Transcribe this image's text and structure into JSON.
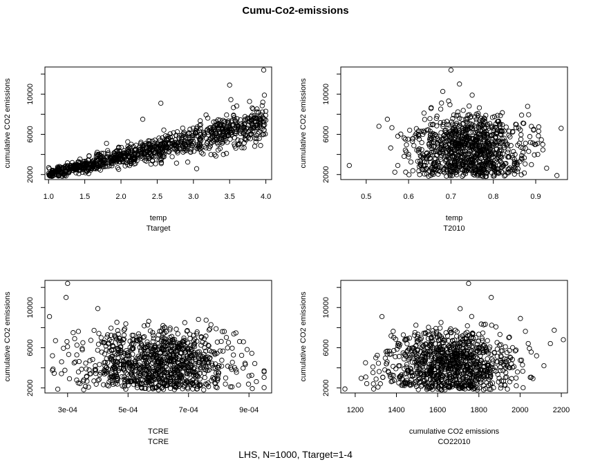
{
  "title": "Cumu-Co2-emissions",
  "footer": "LHS, N=1000, Ttarget=1-4",
  "chart_data": [
    {
      "type": "scatter",
      "xlabel": "temp",
      "xsublabel": "Ttarget",
      "ylabel": "cumulative CO2 emissions",
      "xlim": [
        0.95,
        4.08
      ],
      "ylim": [
        1500,
        12700
      ],
      "xticks": [
        1.0,
        1.5,
        2.0,
        2.5,
        3.0,
        3.5,
        4.0
      ],
      "xtick_labels": [
        "1.0",
        "1.5",
        "2.0",
        "2.5",
        "3.0",
        "3.5",
        "4.0"
      ],
      "yticks": [
        2000,
        6000,
        10000
      ],
      "ytick_labels": [
        "2000",
        "6000",
        "10000"
      ],
      "approx_points": [
        [
          1.0,
          2100
        ],
        [
          1.05,
          2400
        ],
        [
          1.1,
          2200
        ],
        [
          1.2,
          2700
        ],
        [
          1.3,
          2900
        ],
        [
          1.4,
          2800
        ],
        [
          1.5,
          3100
        ],
        [
          1.6,
          3300
        ],
        [
          1.7,
          3500
        ],
        [
          1.8,
          3700
        ],
        [
          1.9,
          3900
        ],
        [
          2.0,
          4000
        ],
        [
          2.1,
          4300
        ],
        [
          2.2,
          4500
        ],
        [
          2.3,
          4700
        ],
        [
          2.4,
          4900
        ],
        [
          2.5,
          5000
        ],
        [
          2.6,
          5200
        ],
        [
          2.7,
          5400
        ],
        [
          2.8,
          5600
        ],
        [
          2.9,
          5700
        ],
        [
          3.0,
          5900
        ],
        [
          3.1,
          6000
        ],
        [
          3.2,
          6200
        ],
        [
          3.3,
          6300
        ],
        [
          3.4,
          6500
        ],
        [
          3.5,
          6600
        ],
        [
          3.6,
          6800
        ],
        [
          3.7,
          7000
        ],
        [
          3.8,
          7100
        ],
        [
          3.9,
          7200
        ],
        [
          4.0,
          7400
        ],
        [
          2.55,
          9100
        ],
        [
          3.5,
          10900
        ],
        [
          3.97,
          12400
        ],
        [
          3.98,
          9900
        ],
        [
          2.3,
          7500
        ],
        [
          1.8,
          5100
        ]
      ]
    },
    {
      "type": "scatter",
      "xlabel": "temp",
      "xsublabel": "T2010",
      "ylabel": "cumulative CO2 emissions",
      "xlim": [
        0.44,
        0.975
      ],
      "ylim": [
        1500,
        12700
      ],
      "xticks": [
        0.5,
        0.6,
        0.7,
        0.8,
        0.9
      ],
      "xtick_labels": [
        "0.5",
        "0.6",
        "0.7",
        "0.8",
        "0.9"
      ],
      "yticks": [
        2000,
        6000,
        10000
      ],
      "ytick_labels": [
        "2000",
        "6000",
        "10000"
      ],
      "approx_points": [
        [
          0.46,
          2900
        ],
        [
          0.53,
          6800
        ],
        [
          0.55,
          7500
        ],
        [
          0.6,
          4000
        ],
        [
          0.65,
          5500
        ],
        [
          0.7,
          12400
        ],
        [
          0.72,
          11000
        ],
        [
          0.75,
          9900
        ],
        [
          0.78,
          4500
        ],
        [
          0.8,
          6000
        ],
        [
          0.85,
          3500
        ],
        [
          0.9,
          5000
        ],
        [
          0.95,
          1900
        ],
        [
          0.96,
          6600
        ]
      ]
    },
    {
      "type": "scatter",
      "xlabel": "TCRE",
      "xsublabel": "TCRE",
      "ylabel": "cumulative CO2 emissions",
      "xlim": [
        0.000225,
        0.000975
      ],
      "ylim": [
        1500,
        12700
      ],
      "xticks": [
        0.0003,
        0.0005,
        0.0007,
        0.0009
      ],
      "xtick_labels": [
        "3e-04",
        "5e-04",
        "7e-04",
        "9e-04"
      ],
      "yticks": [
        2000,
        6000,
        10000
      ],
      "ytick_labels": [
        "2000",
        "6000",
        "10000"
      ],
      "approx_points": [
        [
          0.00024,
          9100
        ],
        [
          0.00026,
          6700
        ],
        [
          0.00028,
          4600
        ],
        [
          0.0003,
          12400
        ],
        [
          0.000295,
          11000
        ],
        [
          0.0004,
          9900
        ],
        [
          0.0005,
          5500
        ],
        [
          0.0006,
          4500
        ],
        [
          0.0007,
          4000
        ],
        [
          0.0008,
          3500
        ],
        [
          0.0009,
          3200
        ],
        [
          0.00095,
          3600
        ]
      ]
    },
    {
      "type": "scatter",
      "xlabel": "cumulative CO2 emissions",
      "xsublabel": "CO22010",
      "ylabel": "cumulative CO2 emissions",
      "xlim": [
        1130,
        2230
      ],
      "ylim": [
        1500,
        12700
      ],
      "xticks": [
        1200,
        1400,
        1600,
        1800,
        2000,
        2200
      ],
      "xtick_labels": [
        "1200",
        "1400",
        "1600",
        "1800",
        "2000",
        "2200"
      ],
      "yticks": [
        2000,
        6000,
        10000
      ],
      "ytick_labels": [
        "2000",
        "6000",
        "10000"
      ],
      "approx_points": [
        [
          1150,
          1900
        ],
        [
          1250,
          4500
        ],
        [
          1300,
          5000
        ],
        [
          1330,
          9100
        ],
        [
          1500,
          5000
        ],
        [
          1650,
          4500
        ],
        [
          1750,
          12400
        ],
        [
          1860,
          11000
        ],
        [
          1950,
          4000
        ],
        [
          2080,
          5200
        ],
        [
          2210,
          6800
        ]
      ]
    }
  ]
}
